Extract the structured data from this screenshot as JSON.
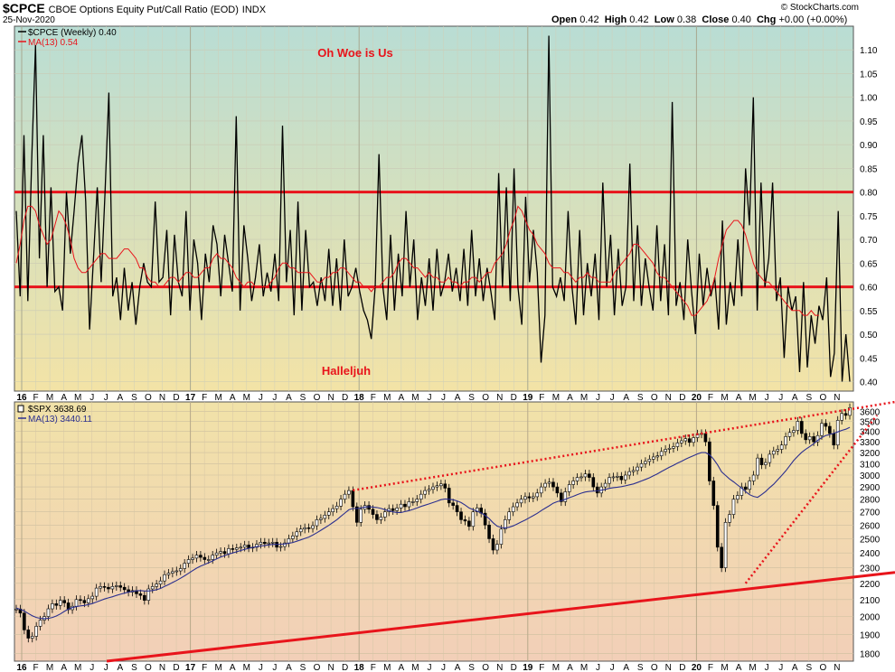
{
  "header": {
    "symbol": "$CPCE",
    "title": "CBOE Options Equity Put/Call Ratio (EOD)",
    "exchange": "INDX",
    "date": "25-Nov-2020",
    "brand": "© StockCharts.com",
    "ohlc": {
      "open_label": "Open",
      "open": "0.42",
      "high_label": "High",
      "high": "0.42",
      "low_label": "Low",
      "low": "0.38",
      "close_label": "Close",
      "close": "0.40",
      "chg_label": "Chg",
      "chg": "+0.00 (+0.00%)"
    }
  },
  "colors": {
    "price_line": "#000000",
    "ma_line": "#e8141b",
    "ref_line": "#e8141b",
    "spx_ma_line": "#2b2f8f",
    "top_bg_top": "#b9ddd4",
    "top_bg_bottom": "#f3e3a6",
    "bottom_bg_top": "#f1e2a8",
    "bottom_bg_bottom": "#f2cfb8"
  },
  "chart_data": [
    {
      "type": "line",
      "title": "CBOE Options Equity Put/Call Ratio (EOD)",
      "legend": [
        "$CPCE (Weekly) 0.40",
        "MA(13) 0.54"
      ],
      "legend_placement": "top-left",
      "x_range": [
        "2016-01",
        "2020-11"
      ],
      "ylim": [
        0.38,
        1.15
      ],
      "y_scale": "linear",
      "y_ticks": [
        "0.40",
        "0.45",
        "0.50",
        "0.55",
        "0.60",
        "0.65",
        "0.70",
        "0.75",
        "0.80",
        "0.85",
        "0.90",
        "0.95",
        "1.00",
        "1.05",
        "1.10"
      ],
      "grid": true,
      "reference_lines": [
        0.8,
        0.6
      ],
      "annotations": [
        "Oh Woe is Us",
        "Halleljuh"
      ],
      "series": [
        {
          "name": "$CPCE (Weekly)",
          "values": [
            0.76,
            0.58,
            0.92,
            0.57,
            0.87,
            1.11,
            0.66,
            0.92,
            0.6,
            0.81,
            0.59,
            0.6,
            0.55,
            0.8,
            0.67,
            0.76,
            0.86,
            0.92,
            0.78,
            0.51,
            0.66,
            0.81,
            0.61,
            0.8,
            1.01,
            0.58,
            0.62,
            0.53,
            0.64,
            0.55,
            0.61,
            0.52,
            0.6,
            0.65,
            0.61,
            0.6,
            0.78,
            0.61,
            0.62,
            0.72,
            0.54,
            0.71,
            0.61,
            0.58,
            0.76,
            0.55,
            0.7,
            0.65,
            0.53,
            0.67,
            0.61,
            0.73,
            0.69,
            0.58,
            0.71,
            0.65,
            0.59,
            0.96,
            0.55,
            0.73,
            0.66,
            0.57,
            0.62,
            0.69,
            0.58,
            0.63,
            0.59,
            0.67,
            0.57,
            0.94,
            0.61,
            0.72,
            0.54,
            0.78,
            0.55,
            0.72,
            0.6,
            0.61,
            0.56,
            0.62,
            0.57,
            0.68,
            0.56,
            0.66,
            0.55,
            0.7,
            0.58,
            0.6,
            0.64,
            0.59,
            0.55,
            0.53,
            0.49,
            0.6,
            0.88,
            0.6,
            0.53,
            0.71,
            0.55,
            0.67,
            0.58,
            0.76,
            0.6,
            0.7,
            0.53,
            0.62,
            0.56,
            0.66,
            0.55,
            0.68,
            0.58,
            0.61,
            0.67,
            0.59,
            0.64,
            0.57,
            0.68,
            0.56,
            0.72,
            0.58,
            0.66,
            0.57,
            0.64,
            0.59,
            0.53,
            0.84,
            0.6,
            0.81,
            0.57,
            0.85,
            0.6,
            0.52,
            0.79,
            0.61,
            0.72,
            0.63,
            0.44,
            0.54,
            1.13,
            0.6,
            0.58,
            0.62,
            0.57,
            0.76,
            0.6,
            0.52,
            0.72,
            0.54,
            0.65,
            0.58,
            0.67,
            0.53,
            0.82,
            0.6,
            0.71,
            0.54,
            0.68,
            0.56,
            0.6,
            0.86,
            0.57,
            0.73,
            0.56,
            0.66,
            0.6,
            0.55,
            0.73,
            0.57,
            0.69,
            0.54,
            0.99,
            0.56,
            0.61,
            0.53,
            0.7,
            0.59,
            0.5,
            0.67,
            0.56,
            0.64,
            0.58,
            0.62,
            0.51,
            0.74,
            0.52,
            0.61,
            0.56,
            0.7,
            0.58,
            0.85,
            0.73,
            1.0,
            0.55,
            0.82,
            0.6,
            0.66,
            0.82,
            0.57,
            0.62,
            0.45,
            0.6,
            0.55,
            0.58,
            0.42,
            0.61,
            0.43,
            0.54,
            0.48,
            0.56,
            0.53,
            0.62,
            0.41,
            0.46,
            0.76,
            0.4,
            0.5,
            0.4
          ]
        },
        {
          "name": "MA(13)",
          "values": [
            0.65,
            0.69,
            0.74,
            0.77,
            0.77,
            0.76,
            0.73,
            0.71,
            0.69,
            0.7,
            0.73,
            0.76,
            0.75,
            0.73,
            0.7,
            0.66,
            0.64,
            0.63,
            0.63,
            0.64,
            0.65,
            0.66,
            0.67,
            0.67,
            0.66,
            0.66,
            0.66,
            0.67,
            0.68,
            0.68,
            0.67,
            0.66,
            0.64,
            0.64,
            0.62,
            0.61,
            0.61,
            0.6,
            0.6,
            0.61,
            0.62,
            0.62,
            0.61,
            0.62,
            0.63,
            0.63,
            0.62,
            0.62,
            0.63,
            0.64,
            0.64,
            0.66,
            0.67,
            0.66,
            0.66,
            0.65,
            0.64,
            0.62,
            0.61,
            0.6,
            0.61,
            0.61,
            0.6,
            0.6,
            0.6,
            0.6,
            0.61,
            0.62,
            0.64,
            0.65,
            0.65,
            0.64,
            0.64,
            0.63,
            0.63,
            0.63,
            0.63,
            0.62,
            0.61,
            0.61,
            0.62,
            0.62,
            0.63,
            0.63,
            0.64,
            0.64,
            0.63,
            0.62,
            0.61,
            0.61,
            0.6,
            0.6,
            0.59,
            0.6,
            0.6,
            0.61,
            0.62,
            0.62,
            0.63,
            0.65,
            0.66,
            0.66,
            0.65,
            0.64,
            0.64,
            0.63,
            0.62,
            0.63,
            0.62,
            0.62,
            0.61,
            0.61,
            0.62,
            0.61,
            0.61,
            0.6,
            0.61,
            0.61,
            0.62,
            0.62,
            0.61,
            0.62,
            0.63,
            0.63,
            0.65,
            0.66,
            0.67,
            0.69,
            0.72,
            0.74,
            0.77,
            0.76,
            0.74,
            0.72,
            0.71,
            0.69,
            0.68,
            0.67,
            0.65,
            0.64,
            0.64,
            0.64,
            0.63,
            0.63,
            0.62,
            0.61,
            0.62,
            0.62,
            0.63,
            0.62,
            0.62,
            0.61,
            0.61,
            0.61,
            0.61,
            0.63,
            0.64,
            0.65,
            0.66,
            0.67,
            0.69,
            0.69,
            0.68,
            0.67,
            0.66,
            0.65,
            0.63,
            0.62,
            0.62,
            0.61,
            0.6,
            0.59,
            0.58,
            0.57,
            0.56,
            0.54,
            0.54,
            0.55,
            0.56,
            0.57,
            0.59,
            0.62,
            0.66,
            0.69,
            0.72,
            0.73,
            0.74,
            0.74,
            0.73,
            0.71,
            0.68,
            0.65,
            0.63,
            0.62,
            0.61,
            0.61,
            0.6,
            0.59,
            0.58,
            0.57,
            0.56,
            0.55,
            0.55,
            0.55,
            0.54,
            0.54,
            0.55,
            0.54,
            0.54
          ]
        }
      ]
    },
    {
      "type": "line",
      "title": "$SPX",
      "legend": [
        "$SPX 3638.69",
        "MA(13) 3440.11"
      ],
      "legend_placement": "top-left",
      "x_range": [
        "2016-01",
        "2020-11"
      ],
      "ylim": [
        1760,
        3700
      ],
      "y_scale": "log",
      "y_ticks": [
        "1800",
        "1900",
        "2000",
        "2100",
        "2200",
        "2300",
        "2400",
        "2500",
        "2600",
        "2700",
        "2800",
        "2900",
        "3000",
        "3100",
        "3200",
        "3300",
        "3400",
        "3500",
        "3600"
      ],
      "grid": true,
      "trendlines": [
        "rising support",
        "upper channel",
        "2020 uptrend"
      ],
      "series": [
        {
          "name": "$SPX",
          "values": [
            2044,
            2020,
            1925,
            1880,
            1890,
            1945,
            1980,
            2000,
            2045,
            2075,
            2065,
            2095,
            2080,
            2040,
            2060,
            2100,
            2095,
            2080,
            2105,
            2120,
            2170,
            2180,
            2175,
            2165,
            2180,
            2185,
            2175,
            2160,
            2145,
            2155,
            2135,
            2125,
            2095,
            2165,
            2180,
            2195,
            2215,
            2255,
            2265,
            2275,
            2280,
            2295,
            2330,
            2355,
            2365,
            2385,
            2370,
            2355,
            2355,
            2385,
            2400,
            2410,
            2395,
            2430,
            2425,
            2435,
            2440,
            2455,
            2435,
            2440,
            2460,
            2475,
            2465,
            2470,
            2475,
            2440,
            2445,
            2470,
            2500,
            2520,
            2550,
            2570,
            2580,
            2575,
            2595,
            2640,
            2650,
            2675,
            2700,
            2725,
            2745,
            2800,
            2840,
            2870,
            2740,
            2620,
            2720,
            2750,
            2720,
            2680,
            2640,
            2660,
            2700,
            2725,
            2710,
            2730,
            2760,
            2740,
            2780,
            2780,
            2800,
            2840,
            2870,
            2880,
            2900,
            2910,
            2925,
            2890,
            2770,
            2750,
            2700,
            2640,
            2630,
            2590,
            2700,
            2730,
            2690,
            2600,
            2500,
            2420,
            2460,
            2570,
            2640,
            2700,
            2740,
            2770,
            2800,
            2820,
            2810,
            2820,
            2850,
            2900,
            2930,
            2940,
            2900,
            2850,
            2780,
            2860,
            2920,
            2950,
            2980,
            2985,
            3010,
            2980,
            2900,
            2850,
            2900,
            2930,
            2980,
            2985,
            2990,
            2960,
            3000,
            3030,
            3040,
            3070,
            3100,
            3120,
            3140,
            3160,
            3170,
            3210,
            3230,
            3240,
            3255,
            3290,
            3310,
            3330,
            3295,
            3340,
            3375,
            3380,
            3300,
            2950,
            2750,
            2440,
            2300,
            2620,
            2680,
            2800,
            2830,
            2900,
            2880,
            2950,
            3000,
            3150,
            3090,
            3110,
            3185,
            3215,
            3230,
            3270,
            3350,
            3390,
            3410,
            3500,
            3380,
            3320,
            3350,
            3300,
            3360,
            3480,
            3450,
            3380,
            3270,
            3510,
            3580,
            3560,
            3640
          ]
        },
        {
          "name": "MA(13)",
          "values": [
            2050,
            2042,
            2032,
            2018,
            2005,
            1995,
            1990,
            1988,
            1990,
            1995,
            2003,
            2015,
            2030,
            2043,
            2052,
            2058,
            2062,
            2065,
            2070,
            2076,
            2085,
            2094,
            2103,
            2110,
            2117,
            2125,
            2132,
            2139,
            2145,
            2150,
            2153,
            2155,
            2152,
            2152,
            2155,
            2160,
            2168,
            2180,
            2192,
            2205,
            2218,
            2232,
            2248,
            2264,
            2281,
            2298,
            2311,
            2322,
            2334,
            2346,
            2360,
            2372,
            2382,
            2392,
            2400,
            2408,
            2417,
            2425,
            2432,
            2438,
            2443,
            2448,
            2452,
            2456,
            2460,
            2460,
            2461,
            2463,
            2467,
            2473,
            2482,
            2492,
            2502,
            2512,
            2526,
            2543,
            2561,
            2579,
            2598,
            2619,
            2640,
            2665,
            2691,
            2716,
            2726,
            2726,
            2731,
            2737,
            2740,
            2737,
            2734,
            2727,
            2717,
            2708,
            2700,
            2695,
            2695,
            2702,
            2710,
            2719,
            2730,
            2742,
            2752,
            2762,
            2773,
            2784,
            2796,
            2802,
            2800,
            2795,
            2786,
            2773,
            2753,
            2730,
            2717,
            2705,
            2692,
            2673,
            2648,
            2617,
            2592,
            2582,
            2578,
            2584,
            2594,
            2608,
            2623,
            2638,
            2654,
            2671,
            2689,
            2710,
            2729,
            2747,
            2768,
            2780,
            2788,
            2799,
            2812,
            2823,
            2837,
            2849,
            2858,
            2863,
            2866,
            2867,
            2873,
            2880,
            2888,
            2894,
            2898,
            2902,
            2909,
            2917,
            2925,
            2937,
            2950,
            2963,
            2977,
            2994,
            3011,
            3031,
            3050,
            3068,
            3086,
            3104,
            3121,
            3140,
            3156,
            3172,
            3188,
            3200,
            3200,
            3180,
            3140,
            3090,
            3028,
            2997,
            2967,
            2942,
            2916,
            2890,
            2861,
            2836,
            2822,
            2815,
            2837,
            2862,
            2894,
            2923,
            2960,
            2996,
            3036,
            3081,
            3128,
            3167,
            3202,
            3231,
            3256,
            3283,
            3314,
            3340,
            3360,
            3370,
            3383,
            3395,
            3410,
            3422,
            3440
          ]
        }
      ]
    }
  ],
  "labels": {
    "ann_top": "Oh Woe is Us",
    "ann_bottom": "Halleljuh",
    "leg1_price": "$CPCE (Weekly) 0.40",
    "leg1_ma": "MA(13) 0.54",
    "leg2_price": "$SPX 3638.69",
    "leg2_ma": "MA(13) 3440.11"
  },
  "x_axis": {
    "months": [
      "16",
      "F",
      "M",
      "A",
      "M",
      "J",
      "J",
      "A",
      "S",
      "O",
      "N",
      "D",
      "17",
      "F",
      "M",
      "A",
      "M",
      "J",
      "J",
      "A",
      "S",
      "O",
      "N",
      "D",
      "18",
      "F",
      "M",
      "A",
      "M",
      "J",
      "J",
      "A",
      "S",
      "O",
      "N",
      "D",
      "19",
      "F",
      "M",
      "A",
      "M",
      "J",
      "J",
      "A",
      "S",
      "O",
      "N",
      "D",
      "20",
      "F",
      "M",
      "A",
      "M",
      "J",
      "J",
      "A",
      "S",
      "O",
      "N"
    ],
    "year_labels": [
      "16",
      "17",
      "18",
      "19",
      "20"
    ]
  }
}
